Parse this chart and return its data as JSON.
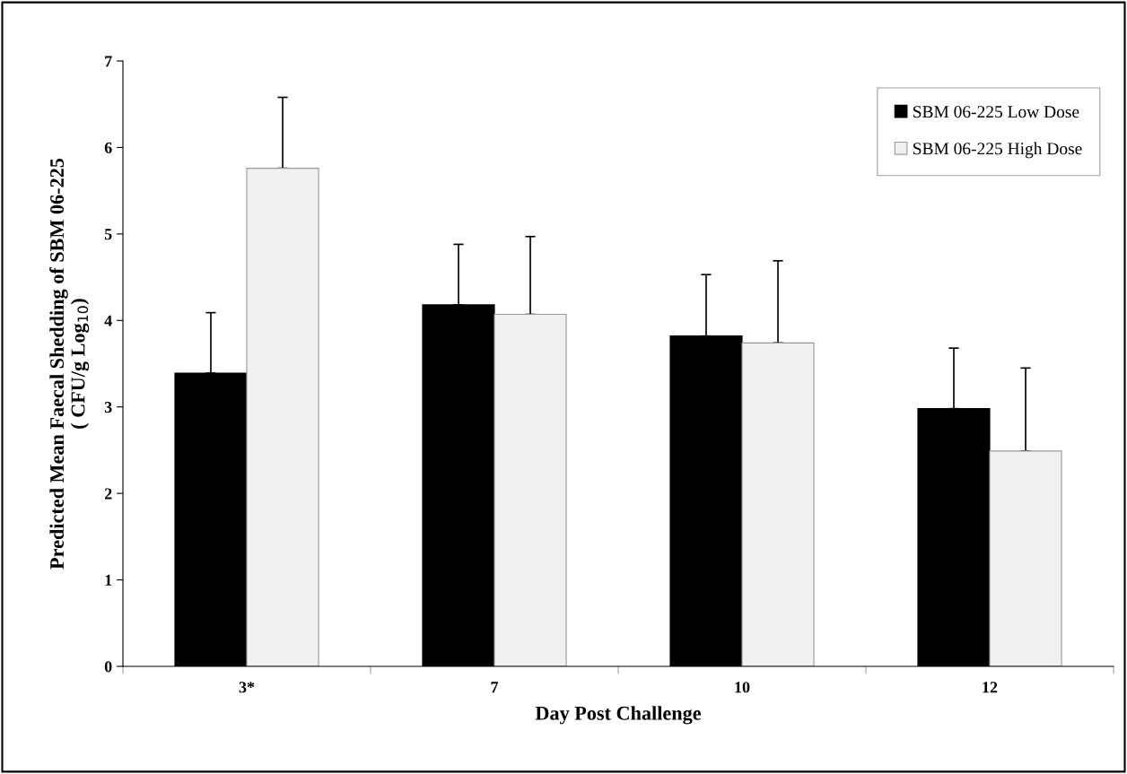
{
  "chart_data": {
    "type": "bar",
    "xlabel": "Day Post Challenge",
    "ylabel": "Predicted Mean Faecal Shedding of SBM 06-225\n( CFU/g Log$_{10}$)",
    "categories": [
      "3*",
      "7",
      "10",
      "12"
    ],
    "series": [
      {
        "name": "SBM 06-225 Low Dose",
        "color": "#000000",
        "values": [
          3.39,
          4.18,
          3.82,
          2.98
        ],
        "errors": [
          [
            3.39,
            4.09
          ],
          [
            4.18,
            4.88
          ],
          [
            3.82,
            4.53
          ],
          [
            2.98,
            3.68
          ]
        ]
      },
      {
        "name": "SBM 06-225 High Dose",
        "color": "#f0f0f0",
        "values": [
          5.76,
          4.07,
          3.74,
          2.49
        ],
        "errors": [
          [
            5.76,
            6.58
          ],
          [
            4.07,
            4.97
          ],
          [
            3.74,
            4.69
          ],
          [
            2.49,
            3.45
          ]
        ]
      }
    ],
    "ylim": [
      0,
      7
    ],
    "yticks": [
      0,
      1,
      2,
      3,
      4,
      5,
      6,
      7
    ],
    "legend": "top right",
    "grid": false
  }
}
